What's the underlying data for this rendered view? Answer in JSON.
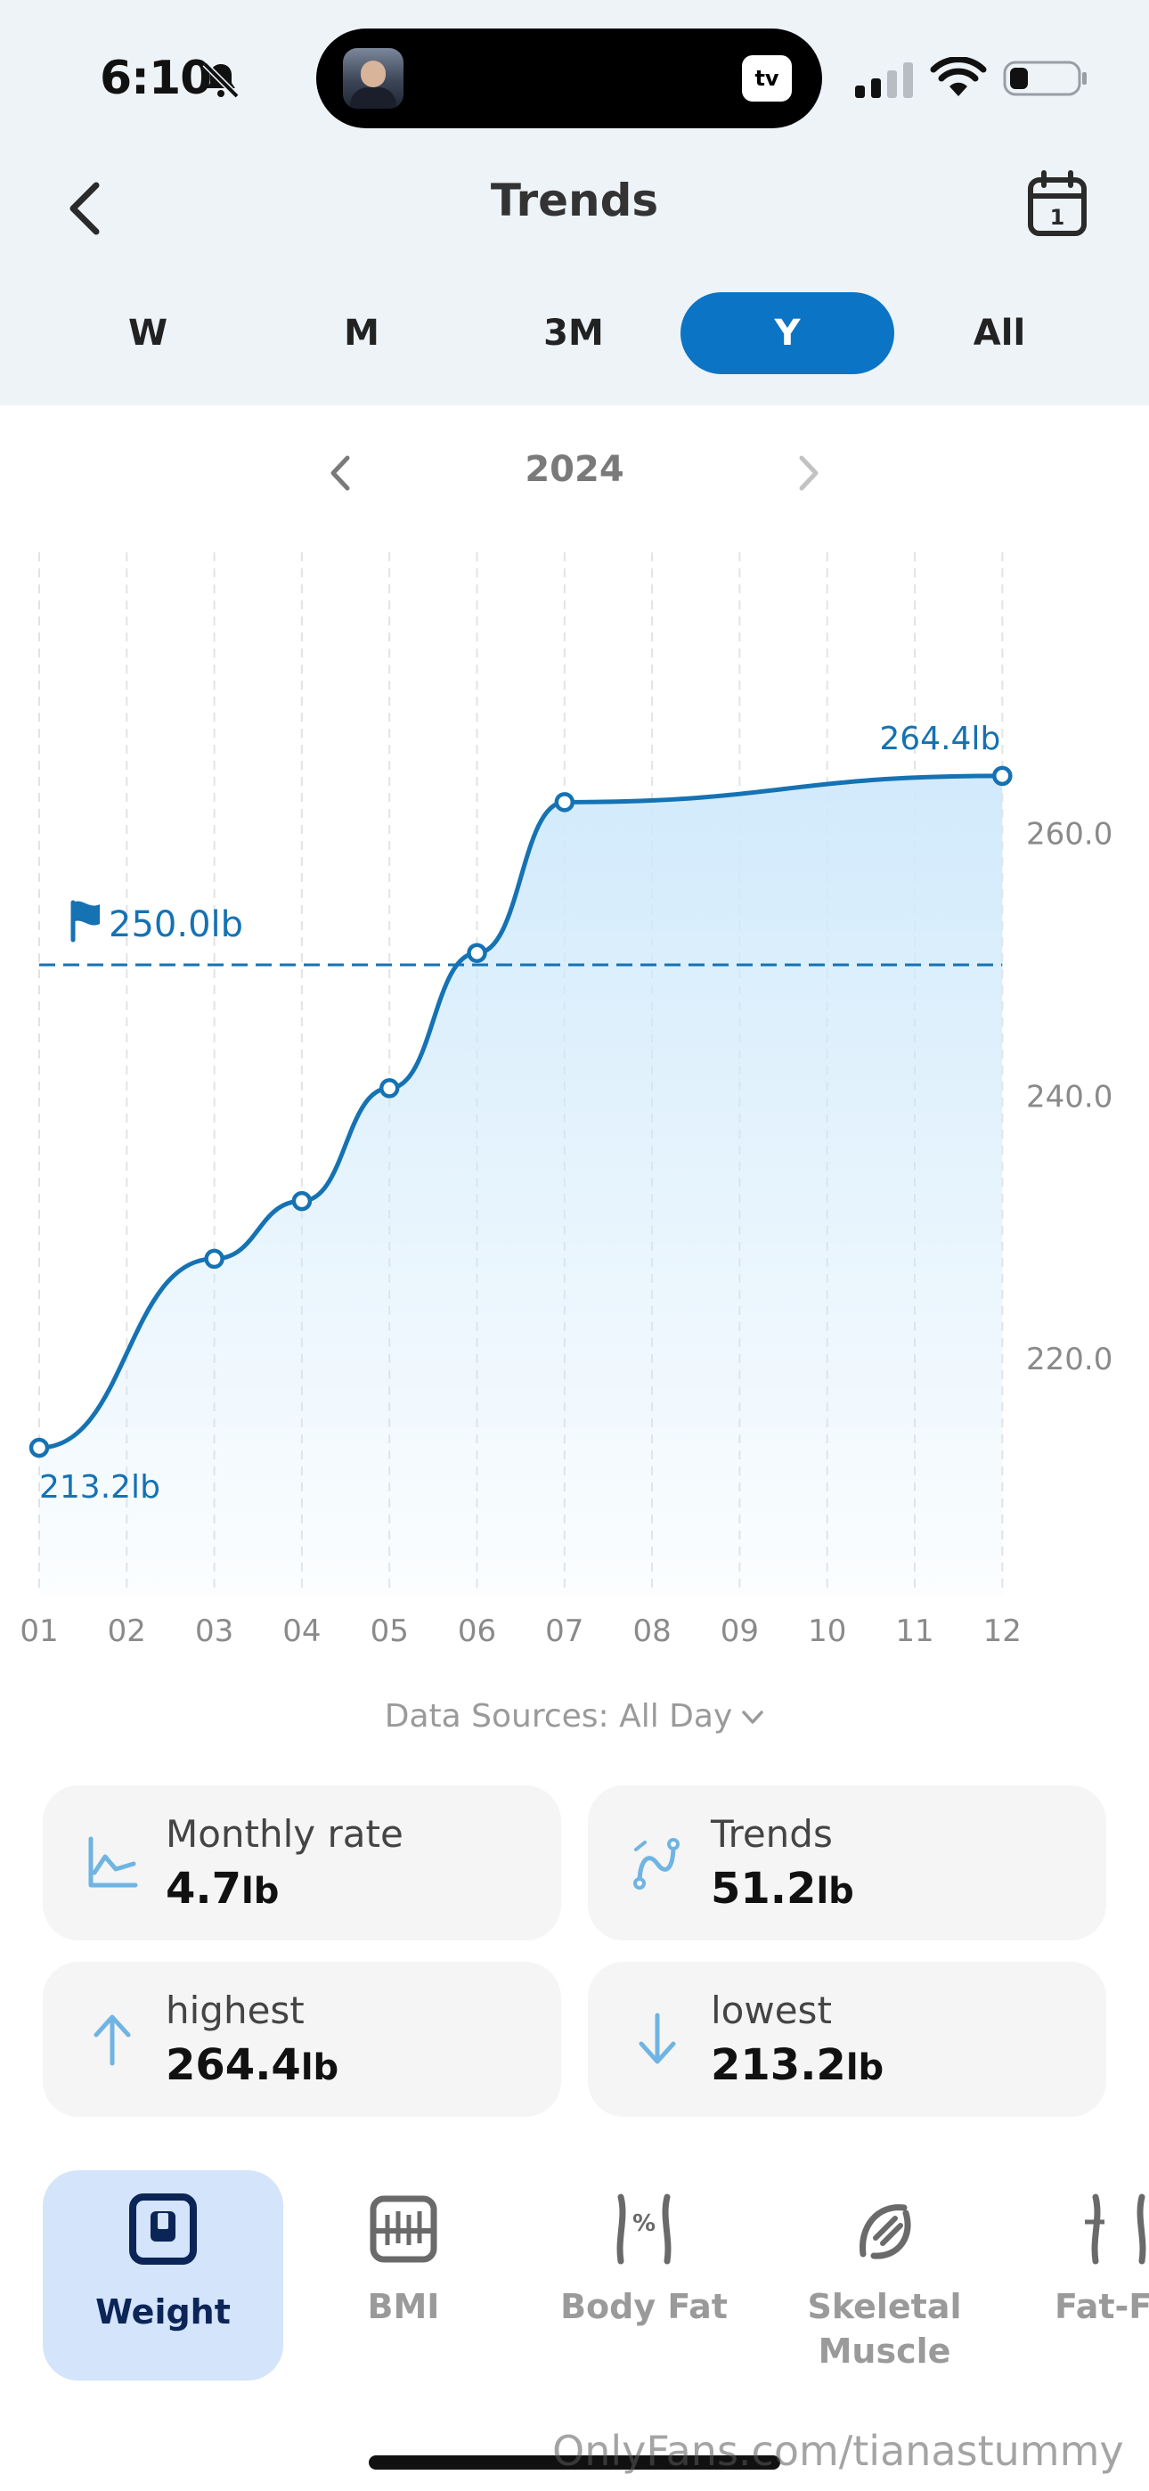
{
  "status_bar": {
    "time": "6:10",
    "tv_label": "tv"
  },
  "header": {
    "title": "Trends"
  },
  "tabs": [
    {
      "label": "W",
      "active": false
    },
    {
      "label": "M",
      "active": false
    },
    {
      "label": "3M",
      "active": false
    },
    {
      "label": "Y",
      "active": true
    },
    {
      "label": "All",
      "active": false
    }
  ],
  "year_nav": {
    "year": "2024"
  },
  "chart_data": {
    "type": "area",
    "categories": [
      "01",
      "02",
      "03",
      "04",
      "05",
      "06",
      "07",
      "08",
      "09",
      "10",
      "11",
      "12"
    ],
    "points": [
      {
        "x": "01",
        "y": 213.2
      },
      {
        "x": "03",
        "y": 227.6
      },
      {
        "x": "04",
        "y": 232.0
      },
      {
        "x": "05",
        "y": 240.6
      },
      {
        "x": "06",
        "y": 250.9
      },
      {
        "x": "07",
        "y": 262.4
      },
      {
        "x": "12",
        "y": 264.4
      }
    ],
    "y_ticks": [
      "220.0",
      "240.0",
      "260.0"
    ],
    "ylim": [
      202,
      276
    ],
    "goal": {
      "value": 250.0,
      "label": "250.0lb"
    },
    "start_label": "213.2lb",
    "end_label": "264.4lb",
    "line_color": "#1572b3",
    "fill_color": "#d3ecfb"
  },
  "data_sources": "Data Sources: All Day",
  "stats": {
    "monthly_rate": {
      "label": "Monthly rate",
      "value": "4.7",
      "unit": "lb"
    },
    "trends": {
      "label": "Trends",
      "value": "51.2",
      "unit": "lb"
    },
    "highest": {
      "label": "highest",
      "value": "264.4",
      "unit": "lb"
    },
    "lowest": {
      "label": "lowest",
      "value": "213.2",
      "unit": "lb"
    }
  },
  "metrics": [
    {
      "label": "Weight",
      "icon": "weight-scale-icon",
      "active": true
    },
    {
      "label": "BMI",
      "icon": "bmi-icon",
      "active": false
    },
    {
      "label": "Body Fat",
      "icon": "body-fat-icon",
      "active": false
    },
    {
      "label": "Skeletal Muscle",
      "icon": "skeletal-muscle-icon",
      "active": false
    },
    {
      "label": "Fat-Fr Mas",
      "icon": "fat-free-mass-icon",
      "active": false
    }
  ],
  "watermark": "OnlyFans.com/tianastummy",
  "colors": {
    "accent": "#0c74c4",
    "active_metric_bg": "#d3e4fb",
    "header_bg": "#eef3f8"
  }
}
